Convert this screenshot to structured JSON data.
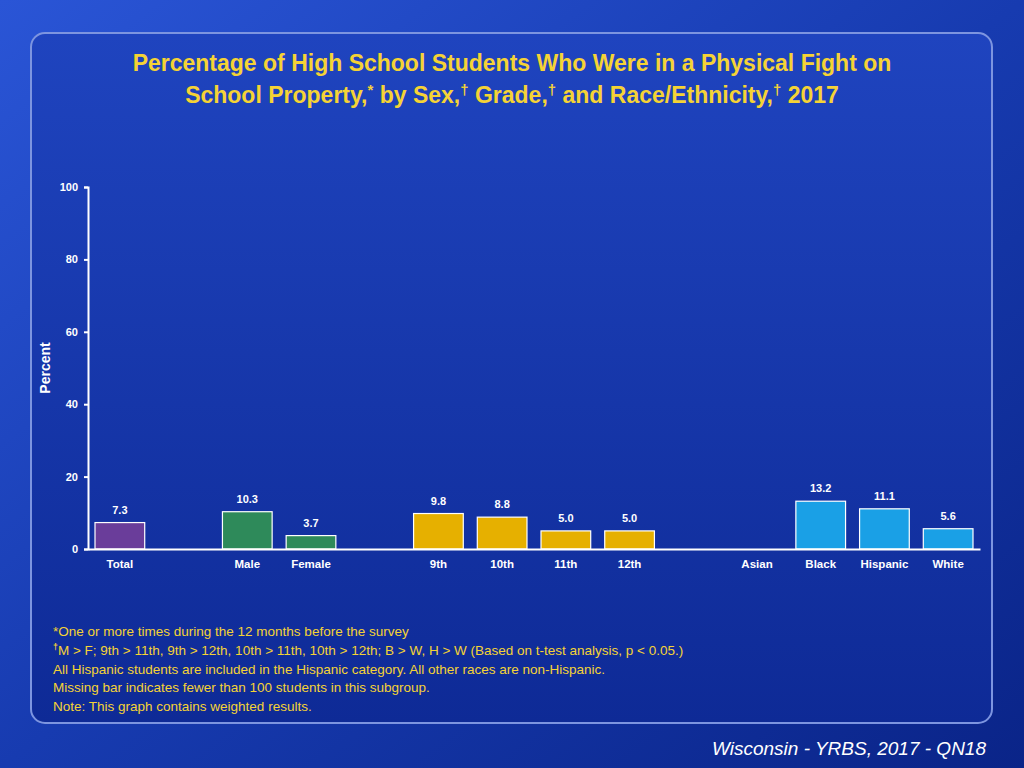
{
  "chart_data": {
    "type": "bar",
    "title": [
      "Percentage of High School Students Who Were in a Physical Fight on",
      "School Property,* by Sex,† Grade,† and Race/Ethnicity,† 2017"
    ],
    "y_label": "Percent",
    "categories": [
      "Total",
      null,
      "Male",
      "Female",
      null,
      "9th",
      "10th",
      "11th",
      "12th",
      null,
      "Asian",
      "Black",
      "Hispanic",
      "White"
    ],
    "values": [
      7.3,
      null,
      10.3,
      3.7,
      null,
      9.8,
      8.8,
      5.0,
      5.0,
      null,
      null,
      13.2,
      11.1,
      5.6
    ],
    "value_labels": [
      "7.3",
      null,
      "10.3",
      "3.7",
      null,
      "9.8",
      "8.8",
      "5.0",
      "5.0",
      null,
      null,
      "13.2",
      "11.1",
      "5.6"
    ],
    "colors": [
      "#6a3d9a",
      null,
      "#2e8a5a",
      "#2e8a5a",
      null,
      "#e6b000",
      "#e6b000",
      "#e6b000",
      "#e6b000",
      null,
      null,
      "#1aa0e6",
      "#1aa0e6",
      "#1aa0e6"
    ],
    "data_labels": true,
    "ylim": [
      0,
      100
    ],
    "yticks": [
      0,
      20,
      40,
      60,
      80,
      100
    ],
    "notes": [
      "*One or more times during the 12 months before the survey",
      "†M > F; 9th > 11th, 9th > 12th, 10th > 11th, 10th > 12th; B > W, H > W (Based on t-test analysis, p < 0.05.)",
      "All Hispanic students are included in the Hispanic category.  All other races are non-Hispanic.",
      "Missing bar indicates fewer than 100 students in this subgroup.",
      "Note: This graph contains weighted results."
    ],
    "source": "Wisconsin - YRBS, 2017 - QN18"
  }
}
